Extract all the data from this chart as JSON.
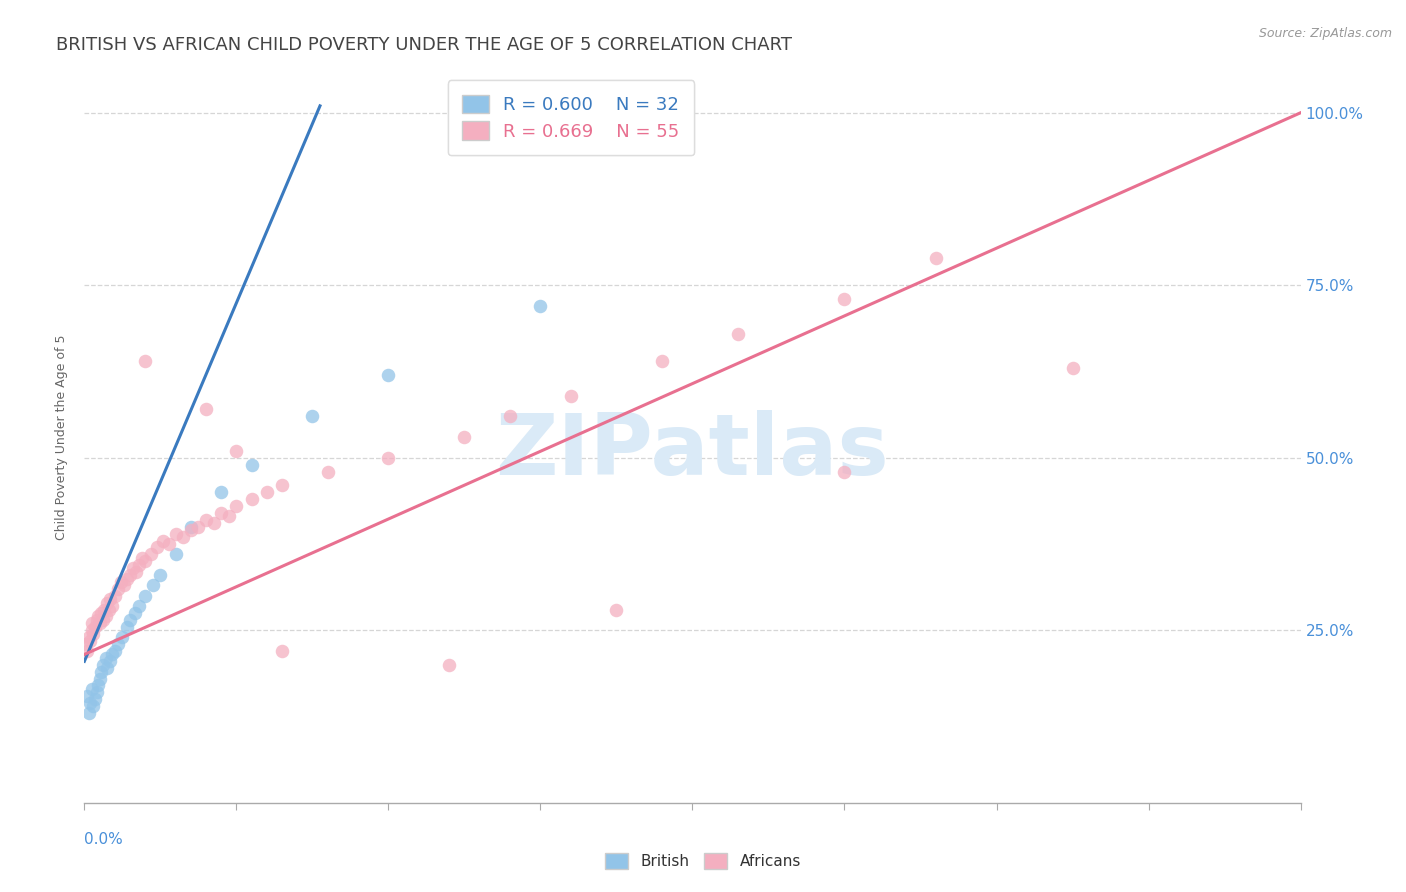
{
  "title": "BRITISH VS AFRICAN CHILD POVERTY UNDER THE AGE OF 5 CORRELATION CHART",
  "source": "Source: ZipAtlas.com",
  "ylabel": "Child Poverty Under the Age of 5",
  "ytick_labels": [
    "25.0%",
    "50.0%",
    "75.0%",
    "100.0%"
  ],
  "ytick_values": [
    0.25,
    0.5,
    0.75,
    1.0
  ],
  "xmin": 0.0,
  "xmax": 0.8,
  "ymin": 0.0,
  "ymax": 1.06,
  "british_R": 0.6,
  "british_N": 32,
  "african_R": 0.669,
  "african_N": 55,
  "british_color": "#92c4e8",
  "african_color": "#f4afc0",
  "british_line_color": "#3a7abf",
  "african_line_color": "#e87090",
  "watermark_text": "ZIPatlas",
  "watermark_color": "#daeaf7",
  "background_color": "#ffffff",
  "grid_color": "#cccccc",
  "title_color": "#444444",
  "axis_label_color": "#4a90d9",
  "title_fontsize": 13,
  "axis_label_fontsize": 9,
  "tick_fontsize": 11,
  "legend_fontsize": 13,
  "marker_size": 95,
  "british_x": [
    0.002,
    0.003,
    0.004,
    0.005,
    0.006,
    0.007,
    0.008,
    0.009,
    0.01,
    0.011,
    0.012,
    0.014,
    0.015,
    0.017,
    0.018,
    0.02,
    0.022,
    0.025,
    0.028,
    0.03,
    0.033,
    0.036,
    0.04,
    0.045,
    0.05,
    0.06,
    0.07,
    0.09,
    0.11,
    0.15,
    0.2,
    0.3
  ],
  "british_y": [
    0.155,
    0.13,
    0.145,
    0.165,
    0.14,
    0.15,
    0.16,
    0.17,
    0.18,
    0.19,
    0.2,
    0.21,
    0.195,
    0.205,
    0.215,
    0.22,
    0.23,
    0.24,
    0.255,
    0.265,
    0.275,
    0.285,
    0.3,
    0.315,
    0.33,
    0.36,
    0.4,
    0.45,
    0.49,
    0.56,
    0.62,
    0.72
  ],
  "african_x": [
    0.001,
    0.002,
    0.003,
    0.004,
    0.005,
    0.005,
    0.006,
    0.007,
    0.008,
    0.009,
    0.01,
    0.011,
    0.012,
    0.013,
    0.014,
    0.015,
    0.016,
    0.017,
    0.018,
    0.02,
    0.022,
    0.024,
    0.026,
    0.028,
    0.03,
    0.032,
    0.034,
    0.036,
    0.038,
    0.04,
    0.044,
    0.048,
    0.052,
    0.056,
    0.06,
    0.065,
    0.07,
    0.075,
    0.08,
    0.085,
    0.09,
    0.095,
    0.1,
    0.11,
    0.12,
    0.13,
    0.16,
    0.2,
    0.25,
    0.28,
    0.32,
    0.38,
    0.43,
    0.5,
    0.56
  ],
  "african_y": [
    0.23,
    0.22,
    0.24,
    0.235,
    0.25,
    0.26,
    0.245,
    0.255,
    0.265,
    0.27,
    0.26,
    0.275,
    0.265,
    0.28,
    0.27,
    0.29,
    0.28,
    0.295,
    0.285,
    0.3,
    0.31,
    0.32,
    0.315,
    0.325,
    0.33,
    0.34,
    0.335,
    0.345,
    0.355,
    0.35,
    0.36,
    0.37,
    0.38,
    0.375,
    0.39,
    0.385,
    0.395,
    0.4,
    0.41,
    0.405,
    0.42,
    0.415,
    0.43,
    0.44,
    0.45,
    0.46,
    0.48,
    0.5,
    0.53,
    0.56,
    0.59,
    0.64,
    0.68,
    0.73,
    0.79
  ],
  "african_outlier_x": [
    0.04,
    0.08,
    0.1,
    0.13,
    0.24,
    0.35,
    0.5,
    0.65
  ],
  "african_outlier_y": [
    0.64,
    0.57,
    0.51,
    0.22,
    0.2,
    0.28,
    0.48,
    0.63
  ],
  "british_trend_x": [
    0.0,
    0.155
  ],
  "british_trend_y": [
    0.205,
    1.01
  ],
  "african_trend_x": [
    0.0,
    0.8
  ],
  "african_trend_y": [
    0.215,
    1.0
  ],
  "xtick_positions": [
    0.0,
    0.1,
    0.2,
    0.3,
    0.4,
    0.5,
    0.6,
    0.7,
    0.8
  ]
}
